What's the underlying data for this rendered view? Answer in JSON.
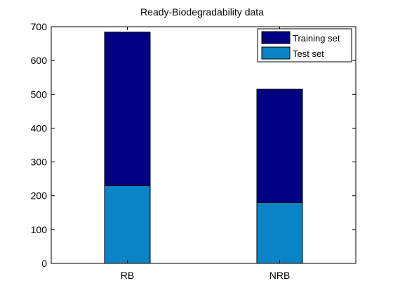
{
  "chart_data": {
    "type": "bar",
    "stacked": true,
    "title": "Ready-Biodegradability data",
    "categories": [
      "RB",
      "NRB"
    ],
    "series": [
      {
        "name": "Test set",
        "values": [
          230,
          180
        ],
        "color": "#0b84c6"
      },
      {
        "name": "Training set",
        "values": [
          454,
          335
        ],
        "color": "#000080"
      }
    ],
    "xlabel": "",
    "ylabel": "",
    "ylim": [
      0,
      700
    ],
    "yticks": [
      0,
      100,
      200,
      300,
      400,
      500,
      600,
      700
    ],
    "xlim": [
      0.5,
      2.5
    ],
    "grid": false,
    "legend": {
      "position": "top-right",
      "order": [
        "Training set",
        "Test set"
      ]
    }
  }
}
